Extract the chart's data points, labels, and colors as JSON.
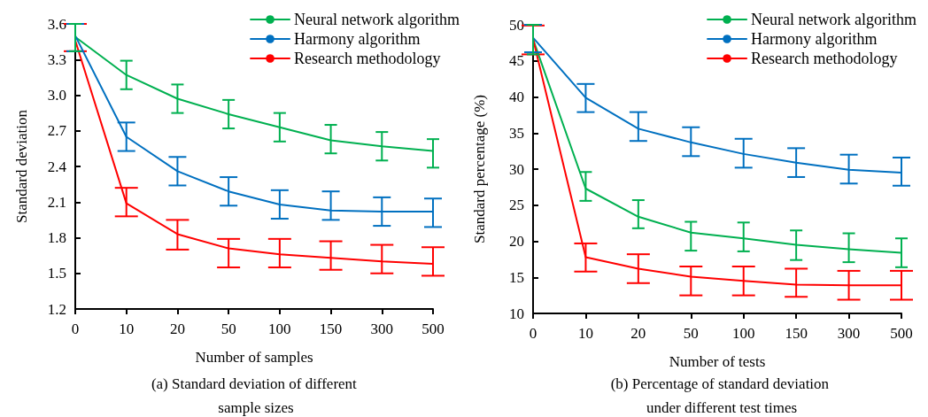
{
  "chart_data": [
    {
      "type": "line",
      "title": "(a) Standard deviation of different sample sizes",
      "xlabel": "Number of samples",
      "ylabel": "Standard deviation",
      "categories": [
        "0",
        "10",
        "20",
        "50",
        "100",
        "150",
        "300",
        "500"
      ],
      "ylim": [
        1.2,
        3.6
      ],
      "yticks": [
        1.2,
        1.5,
        1.8,
        2.1,
        2.4,
        2.7,
        {
          "value": 3,
          "label": "3.0"
        },
        3.3,
        3.6
      ],
      "grid": false,
      "legend": "top right",
      "marker": "none",
      "line_style": "solid",
      "series": [
        {
          "name": "Neural network algorithm",
          "color": "#00b050",
          "values": [
            3.49,
            3.17,
            2.97,
            2.84,
            2.73,
            2.62,
            2.57,
            2.53
          ],
          "errors": [
            [
              3.37,
              3.6
            ],
            [
              3.05,
              3.29
            ],
            [
              2.85,
              3.09
            ],
            [
              2.72,
              2.96
            ],
            [
              2.61,
              2.85
            ],
            [
              2.51,
              2.75
            ],
            [
              2.45,
              2.69
            ],
            [
              2.39,
              2.63
            ]
          ]
        },
        {
          "name": "Harmony algorithm",
          "color": "#0070c0",
          "values": [
            3.5,
            2.65,
            2.36,
            2.19,
            2.08,
            2.03,
            2.02,
            2.02
          ],
          "errors": [
            [
              3.37,
              3.6
            ],
            [
              2.53,
              2.77
            ],
            [
              2.24,
              2.48
            ],
            [
              2.07,
              2.31
            ],
            [
              1.96,
              2.2
            ],
            [
              1.95,
              2.19
            ],
            [
              1.9,
              2.14
            ],
            [
              1.89,
              2.13
            ]
          ]
        },
        {
          "name": "Research methodology",
          "color": "#ff0000",
          "values": [
            3.46,
            2.09,
            1.83,
            1.71,
            1.66,
            1.63,
            1.6,
            1.58
          ],
          "errors": [
            [
              3.37,
              3.6
            ],
            [
              1.98,
              2.22
            ],
            [
              1.7,
              1.95
            ],
            [
              1.55,
              1.79
            ],
            [
              1.55,
              1.79
            ],
            [
              1.53,
              1.77
            ],
            [
              1.5,
              1.74
            ],
            [
              1.48,
              1.72
            ]
          ]
        }
      ]
    },
    {
      "type": "line",
      "title": "(b) Percentage of standard deviation under different test times",
      "xlabel": "Number of tests",
      "ylabel": "Standard percentage (%)",
      "categories": [
        "0",
        "10",
        "20",
        "50",
        "100",
        "150",
        "300",
        "500"
      ],
      "ylim": [
        10,
        50
      ],
      "yticks": [
        10,
        15,
        20,
        25,
        30,
        35,
        40,
        45,
        50
      ],
      "grid": false,
      "legend": "top right",
      "marker": "none",
      "line_style": "solid",
      "series": [
        {
          "name": "Neural network algorithm",
          "color": "#00b050",
          "values": [
            48,
            27.3,
            23.4,
            21.2,
            20.4,
            19.5,
            18.9,
            18.4
          ],
          "errors": [
            [
              45.9,
              50
            ],
            [
              25.6,
              29.6
            ],
            [
              21.8,
              25.7
            ],
            [
              18.7,
              22.7
            ],
            [
              18.6,
              22.6
            ],
            [
              17.4,
              21.5
            ],
            [
              17.1,
              21.1
            ],
            [
              16.4,
              20.4
            ]
          ]
        },
        {
          "name": "Harmony algorithm",
          "color": "#0070c0",
          "values": [
            48.2,
            39.9,
            35.6,
            33.7,
            32.1,
            30.9,
            29.9,
            29.5
          ],
          "errors": [
            [
              46.2,
              50
            ],
            [
              37.9,
              41.8
            ],
            [
              33.9,
              37.9
            ],
            [
              31.8,
              35.8
            ],
            [
              30.2,
              34.2
            ],
            [
              28.9,
              32.9
            ],
            [
              28,
              32
            ],
            [
              27.7,
              31.6
            ]
          ]
        },
        {
          "name": "Research methodology",
          "color": "#ff0000",
          "values": [
            48,
            17.8,
            16.2,
            15.1,
            14.5,
            14,
            13.9,
            13.9
          ],
          "errors": [
            [
              45.9,
              49.9
            ],
            [
              15.8,
              19.7
            ],
            [
              14.2,
              18.2
            ],
            [
              12.5,
              16.5
            ],
            [
              12.5,
              16.5
            ],
            [
              12.3,
              16.2
            ],
            [
              11.9,
              15.9
            ],
            [
              11.9,
              15.9
            ]
          ]
        }
      ]
    }
  ]
}
